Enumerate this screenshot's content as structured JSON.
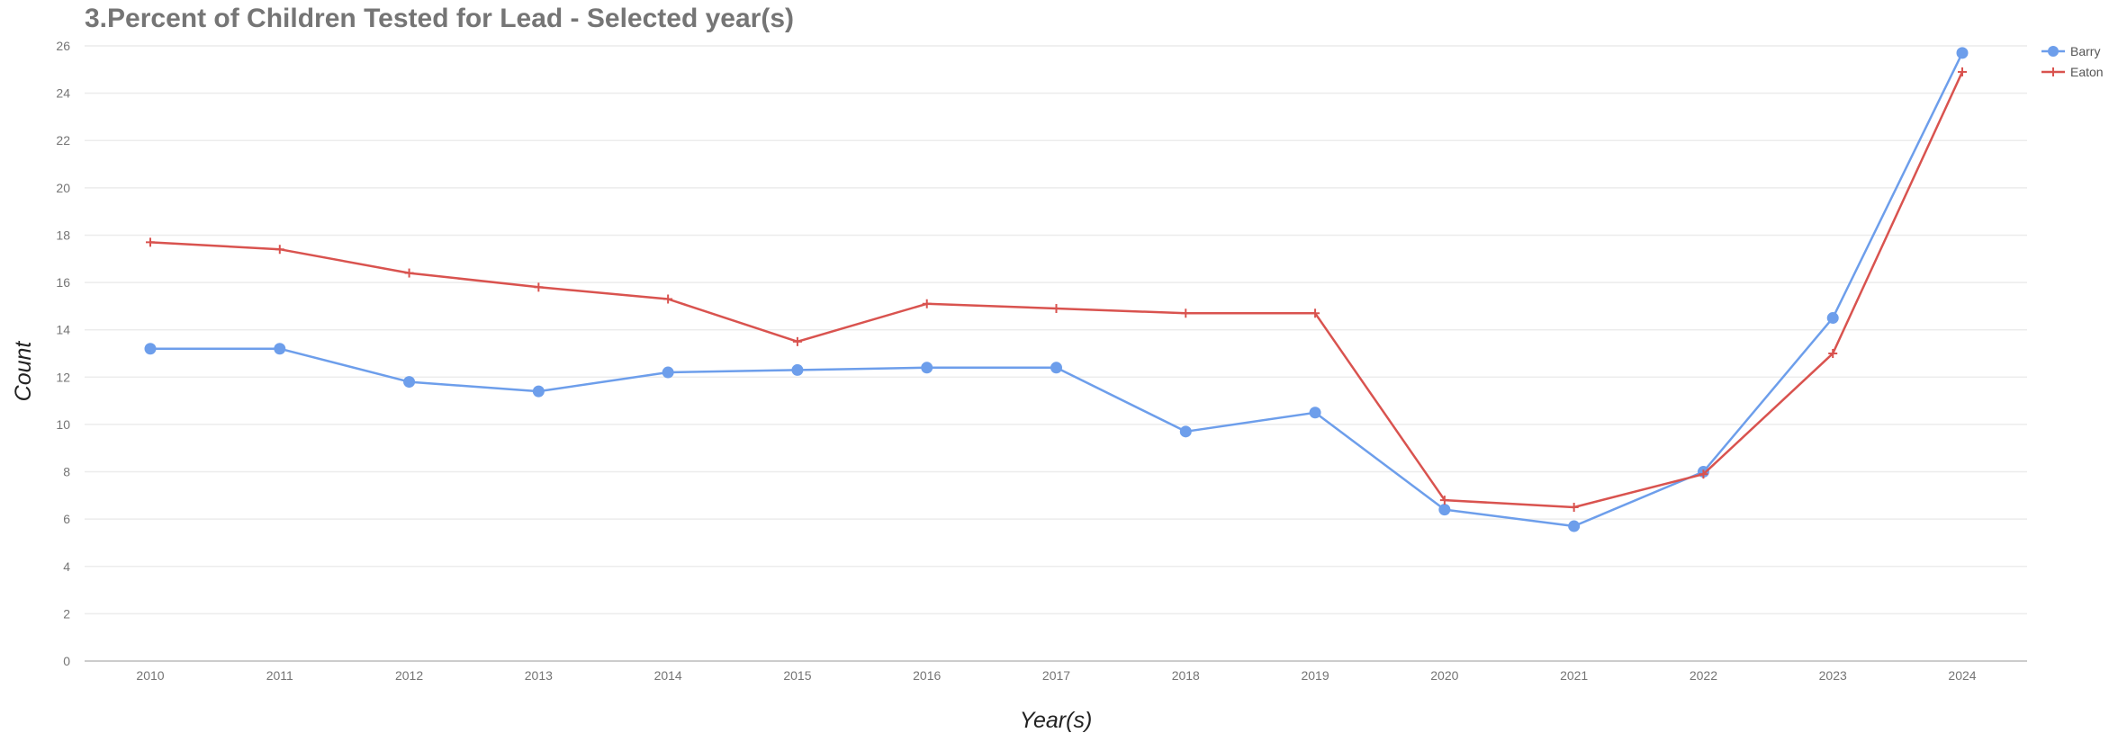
{
  "chart_data": {
    "type": "line",
    "title": "3.Percent of Children Tested for Lead - Selected year(s)",
    "xlabel": "Year(s)",
    "ylabel": "Count",
    "categories": [
      "2010",
      "2011",
      "2012",
      "2013",
      "2014",
      "2015",
      "2016",
      "2017",
      "2018",
      "2019",
      "2020",
      "2021",
      "2022",
      "2023",
      "2024"
    ],
    "ylim": [
      0,
      26
    ],
    "yticks": [
      0,
      2,
      4,
      6,
      8,
      10,
      12,
      14,
      16,
      18,
      20,
      22,
      24,
      26
    ],
    "grid": true,
    "legend_position": "top-right",
    "series": [
      {
        "name": "Barry",
        "color": "#6d9eeb",
        "marker": "circle",
        "values": [
          13.2,
          13.2,
          11.8,
          11.4,
          12.2,
          12.3,
          12.4,
          12.4,
          9.7,
          10.5,
          6.4,
          5.7,
          8.0,
          14.5,
          25.7
        ]
      },
      {
        "name": "Eaton",
        "color": "#d9534f",
        "marker": "plus",
        "values": [
          17.7,
          17.4,
          16.4,
          15.8,
          15.3,
          13.5,
          15.1,
          14.9,
          14.7,
          14.7,
          6.8,
          6.5,
          7.9,
          13.0,
          24.9
        ]
      }
    ]
  }
}
